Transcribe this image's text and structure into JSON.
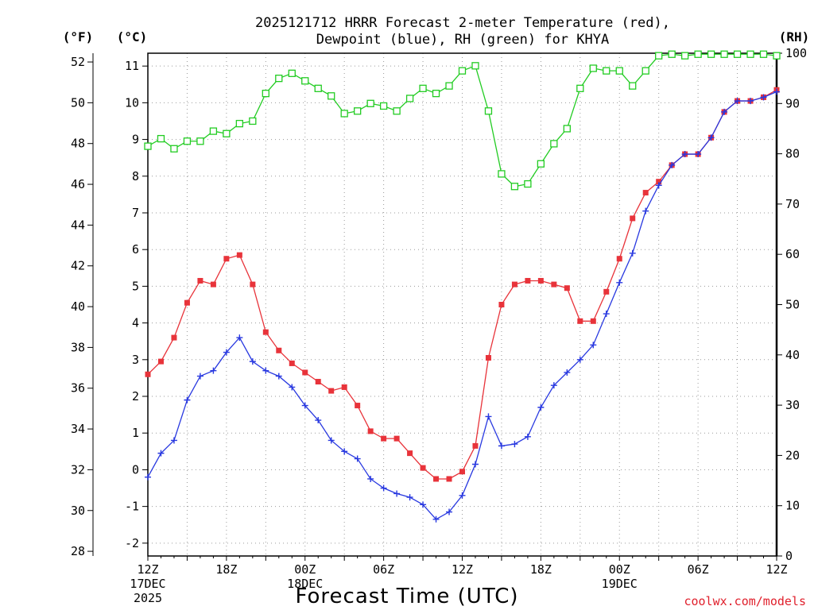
{
  "chart_data": {
    "type": "line",
    "title": "2025121712 HRRR Forecast 2-meter Temperature (red),",
    "subtitle": "Dewpoint (blue), RH (green) for KHYA",
    "xlabel": "Forecast Time (UTC)",
    "units": {
      "fahrenheit": "(°F)",
      "celsius": "(°C)",
      "rh": "(RH)"
    },
    "credit": "coolwx.com/models",
    "x_hours": [
      0,
      1,
      2,
      3,
      4,
      5,
      6,
      7,
      8,
      9,
      10,
      11,
      12,
      13,
      14,
      15,
      16,
      17,
      18,
      19,
      20,
      21,
      22,
      23,
      24,
      25,
      26,
      27,
      28,
      29,
      30,
      31,
      32,
      33,
      34,
      35,
      36,
      37,
      38,
      39,
      40,
      41,
      42,
      43,
      44,
      45,
      46,
      47,
      48
    ],
    "x_ticks": [
      {
        "hour": 0,
        "lines": [
          "12Z",
          "17DEC",
          "2025"
        ]
      },
      {
        "hour": 6,
        "lines": [
          "18Z"
        ]
      },
      {
        "hour": 12,
        "lines": [
          "00Z",
          "18DEC"
        ]
      },
      {
        "hour": 18,
        "lines": [
          "06Z"
        ]
      },
      {
        "hour": 24,
        "lines": [
          "12Z"
        ]
      },
      {
        "hour": 30,
        "lines": [
          "18Z"
        ]
      },
      {
        "hour": 36,
        "lines": [
          "00Z",
          "19DEC"
        ]
      },
      {
        "hour": 42,
        "lines": [
          "06Z"
        ]
      },
      {
        "hour": 48,
        "lines": [
          "12Z"
        ]
      }
    ],
    "celsius_range": [
      -2.35,
      11.35
    ],
    "fahrenheit_ticks": [
      28,
      30,
      32,
      34,
      36,
      38,
      40,
      42,
      44,
      46,
      48,
      50,
      52
    ],
    "celsius_ticks": [
      -2,
      -1,
      0,
      1,
      2,
      3,
      4,
      5,
      6,
      7,
      8,
      9,
      10,
      11
    ],
    "rh_range": [
      0,
      100
    ],
    "rh_ticks": [
      0,
      10,
      20,
      30,
      40,
      50,
      60,
      70,
      80,
      90,
      100
    ],
    "grid": true,
    "series": [
      {
        "name": "Temperature",
        "color": "#e8333a",
        "marker": "filled-square",
        "axis": "celsius",
        "values": [
          2.6,
          2.95,
          3.6,
          4.55,
          5.15,
          5.05,
          5.75,
          5.85,
          5.05,
          3.75,
          3.25,
          2.9,
          2.65,
          2.4,
          2.15,
          2.25,
          1.75,
          1.05,
          0.85,
          0.85,
          0.45,
          0.05,
          -0.25,
          -0.25,
          -0.05,
          0.65,
          3.05,
          4.5,
          5.05,
          5.15,
          5.15,
          5.05,
          4.95,
          4.05,
          4.05,
          4.85,
          5.75,
          6.85,
          7.55,
          7.85,
          8.3,
          8.6,
          8.6,
          9.05,
          9.75,
          10.05,
          10.05,
          10.15,
          10.35
        ]
      },
      {
        "name": "Dewpoint",
        "color": "#2838e0",
        "marker": "plus",
        "axis": "celsius",
        "values": [
          -0.2,
          0.45,
          0.8,
          1.9,
          2.55,
          2.7,
          3.2,
          3.6,
          2.95,
          2.7,
          2.55,
          2.25,
          1.75,
          1.35,
          0.8,
          0.5,
          0.3,
          -0.25,
          -0.5,
          -0.65,
          -0.75,
          -0.95,
          -1.35,
          -1.15,
          -0.7,
          0.15,
          1.45,
          0.65,
          0.7,
          0.9,
          1.7,
          2.3,
          2.65,
          3.0,
          3.4,
          4.25,
          5.1,
          5.9,
          7.05,
          7.75,
          8.3,
          8.6,
          8.6,
          9.05,
          9.75,
          10.05,
          10.05,
          10.15,
          10.3
        ]
      },
      {
        "name": "RH",
        "color": "#22cc22",
        "marker": "open-square",
        "axis": "rh",
        "values": [
          81.5,
          83,
          81,
          82.5,
          82.5,
          84.5,
          84,
          86,
          86.5,
          92,
          95,
          96,
          94.5,
          93,
          91.5,
          88,
          88.5,
          90,
          89.5,
          88.5,
          91,
          93,
          92,
          93.5,
          96.5,
          97.5,
          88.5,
          76,
          73.5,
          74,
          78,
          82,
          85,
          93,
          97,
          96.5,
          96.5,
          93.5,
          96.5,
          99.5,
          99.8,
          99.5,
          99.8,
          99.8,
          99.8,
          99.8,
          99.8,
          99.8,
          99.5
        ]
      }
    ]
  }
}
